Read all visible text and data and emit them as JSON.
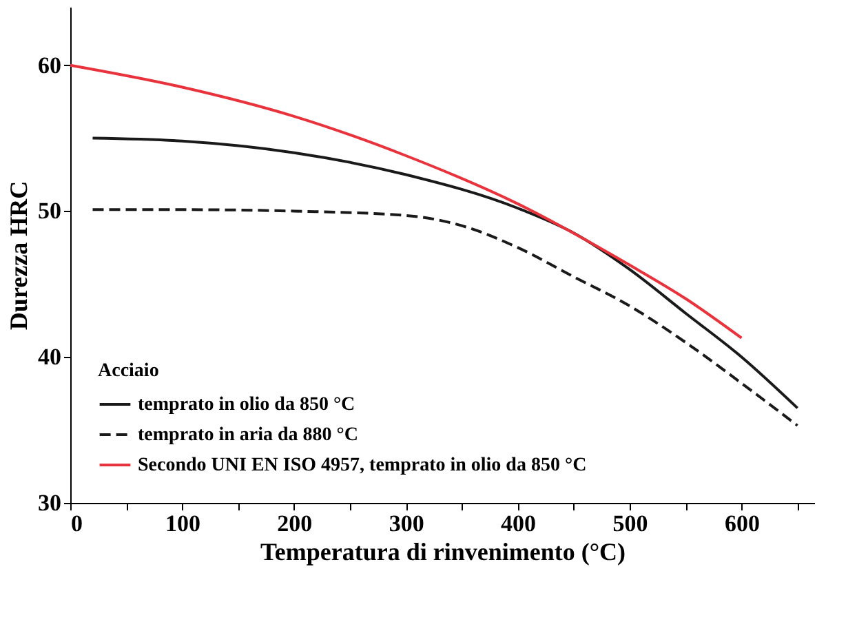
{
  "chart_data": {
    "type": "line",
    "xlabel": "Temperatura di rinvenimento (°C)",
    "ylabel": "Durezza HRC",
    "legend_title": "Acciaio",
    "legend": "bottom left",
    "grid": false,
    "line_style": "solid",
    "marker": "none",
    "xlim": [
      0,
      665
    ],
    "ylim": [
      30,
      64
    ],
    "xticks": [
      0,
      {
        "value": 50,
        "label": null
      },
      100,
      {
        "value": 150,
        "label": null
      },
      200,
      {
        "value": 250,
        "label": null
      },
      300,
      {
        "value": 350,
        "label": null
      },
      400,
      {
        "value": 450,
        "label": null
      },
      500,
      {
        "value": 550,
        "label": null
      },
      600,
      {
        "value": 650,
        "label": null
      }
    ],
    "yticks": [
      30,
      40,
      50,
      60
    ],
    "series": [
      {
        "name": "temprato in olio da 850 °C",
        "color": "#1a1a1a",
        "x": [
          20,
          100,
          200,
          300,
          400,
          450,
          500,
          550,
          600,
          650
        ],
        "values": [
          55,
          54.8,
          54,
          52.5,
          50.2,
          48.5,
          46,
          43,
          40,
          36.5
        ]
      },
      {
        "name": "temprato in aria da 880 °C",
        "color": "#1a1a1a",
        "line_style": "dashed",
        "x": [
          20,
          100,
          200,
          300,
          350,
          400,
          450,
          500,
          550,
          600,
          650
        ],
        "values": [
          50.1,
          50.1,
          50,
          49.7,
          49,
          47.5,
          45.5,
          43.5,
          41,
          38.2,
          35.3
        ]
      },
      {
        "name": "Secondo UNI EN ISO 4957, temprato in olio da 850 °C",
        "color": "#e8323c",
        "x": [
          0,
          100,
          200,
          300,
          400,
          500,
          550,
          600
        ],
        "values": [
          60,
          58.5,
          56.5,
          53.8,
          50.5,
          46.3,
          44,
          41.3
        ]
      }
    ]
  }
}
